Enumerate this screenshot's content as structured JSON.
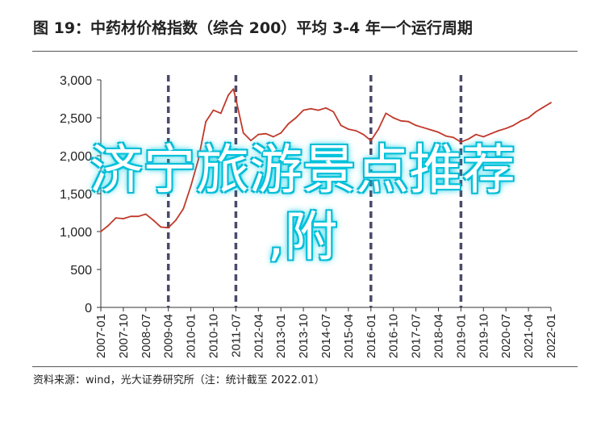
{
  "title": "图 19：中药材价格指数（综合 200）平均 3-4 年一个运行周期",
  "source": "资料来源：wind，光大证券研究所（注：统计截至 2022.01）",
  "watermark": {
    "line1": "济宁旅游景点推荐",
    "line2": ",附"
  },
  "colors": {
    "line": "#c0392b",
    "divider": "#4a4a6a",
    "watermark": "#00c8e0"
  },
  "chart_data": {
    "type": "line",
    "title": "",
    "xlabel": "",
    "ylabel": "",
    "ylim": [
      0,
      3000
    ],
    "yticks": [
      0,
      500,
      1000,
      1500,
      2000,
      2500,
      3000
    ],
    "ytick_labels": [
      "0",
      "500",
      "1,000",
      "1,500",
      "2,000",
      "2,500",
      "3,000"
    ],
    "xtick_labels": [
      "2007-01",
      "2007-10",
      "2008-07",
      "2009-04",
      "2010-01",
      "2010-10",
      "2011-07",
      "2012-04",
      "2013-01",
      "2013-10",
      "2014-07",
      "2015-04",
      "2016-01",
      "2016-10",
      "2017-07",
      "2018-04",
      "2019-01",
      "2019-10",
      "2020-07",
      "2021-04",
      "2022-01"
    ],
    "cycle_markers": [
      "2009-04",
      "2011-07",
      "2016-01",
      "2019-01"
    ],
    "grid": false,
    "series": [
      {
        "points": [
          [
            "2007-01",
            1000
          ],
          [
            "2007-04",
            1080
          ],
          [
            "2007-07",
            1180
          ],
          [
            "2007-10",
            1170
          ],
          [
            "2008-01",
            1200
          ],
          [
            "2008-04",
            1200
          ],
          [
            "2008-07",
            1230
          ],
          [
            "2008-10",
            1150
          ],
          [
            "2009-01",
            1060
          ],
          [
            "2009-04",
            1050
          ],
          [
            "2009-07",
            1150
          ],
          [
            "2009-10",
            1300
          ],
          [
            "2010-01",
            1600
          ],
          [
            "2010-04",
            1950
          ],
          [
            "2010-07",
            2450
          ],
          [
            "2010-10",
            2600
          ],
          [
            "2011-01",
            2560
          ],
          [
            "2011-04",
            2800
          ],
          [
            "2011-06",
            2880
          ],
          [
            "2011-07",
            2750
          ],
          [
            "2011-10",
            2300
          ],
          [
            "2012-01",
            2200
          ],
          [
            "2012-04",
            2280
          ],
          [
            "2012-07",
            2290
          ],
          [
            "2012-10",
            2250
          ],
          [
            "2013-01",
            2300
          ],
          [
            "2013-04",
            2420
          ],
          [
            "2013-07",
            2500
          ],
          [
            "2013-10",
            2600
          ],
          [
            "2014-01",
            2620
          ],
          [
            "2014-04",
            2600
          ],
          [
            "2014-07",
            2630
          ],
          [
            "2014-10",
            2580
          ],
          [
            "2015-01",
            2400
          ],
          [
            "2015-04",
            2350
          ],
          [
            "2015-07",
            2330
          ],
          [
            "2015-10",
            2280
          ],
          [
            "2016-01",
            2200
          ],
          [
            "2016-04",
            2350
          ],
          [
            "2016-07",
            2560
          ],
          [
            "2016-10",
            2500
          ],
          [
            "2017-01",
            2460
          ],
          [
            "2017-04",
            2450
          ],
          [
            "2017-07",
            2400
          ],
          [
            "2017-10",
            2370
          ],
          [
            "2018-01",
            2340
          ],
          [
            "2018-04",
            2310
          ],
          [
            "2018-07",
            2260
          ],
          [
            "2018-10",
            2240
          ],
          [
            "2019-01",
            2180
          ],
          [
            "2019-04",
            2220
          ],
          [
            "2019-07",
            2280
          ],
          [
            "2019-10",
            2250
          ],
          [
            "2020-01",
            2290
          ],
          [
            "2020-04",
            2330
          ],
          [
            "2020-07",
            2360
          ],
          [
            "2020-10",
            2400
          ],
          [
            "2021-01",
            2460
          ],
          [
            "2021-04",
            2500
          ],
          [
            "2021-07",
            2580
          ],
          [
            "2021-10",
            2640
          ],
          [
            "2022-01",
            2700
          ]
        ]
      }
    ]
  }
}
